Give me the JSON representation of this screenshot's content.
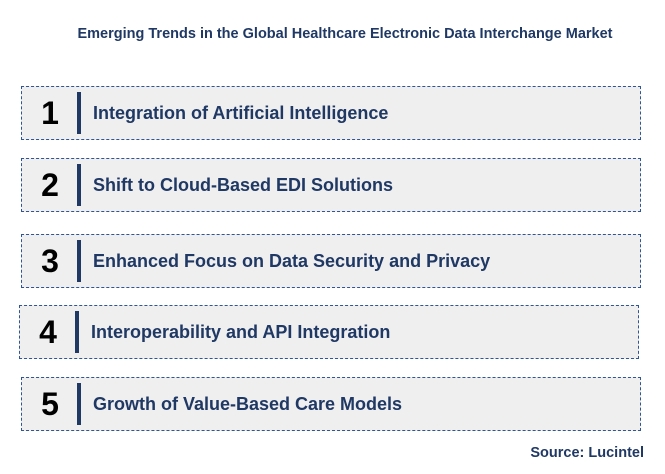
{
  "title": "Emerging Trends in the Global Healthcare Electronic Data Interchange Market",
  "trends": [
    {
      "number": "1",
      "label": "Integration of Artificial Intelligence"
    },
    {
      "number": "2",
      "label": "Shift to Cloud-Based EDI Solutions"
    },
    {
      "number": "3",
      "label": "Enhanced Focus on Data Security and Privacy"
    },
    {
      "number": "4",
      "label": "Interoperability and API Integration"
    },
    {
      "number": "5",
      "label": "Growth of Value-Based Care Models"
    }
  ],
  "source": "Source: Lucintel",
  "colors": {
    "text": "#1f3864",
    "box_fill": "#efefef",
    "box_border": "#2f5597",
    "number": "#000000"
  }
}
